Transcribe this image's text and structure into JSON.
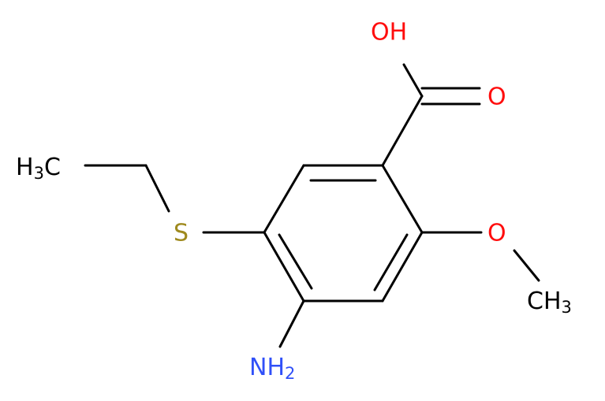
{
  "atoms": [
    {
      "text": "OH"
    },
    {
      "text": "O"
    },
    {
      "main": "H",
      "sub": "3",
      "tail": "C"
    },
    {
      "text": "S"
    },
    {
      "text": "O"
    },
    {
      "main": "CH",
      "sub": "3"
    },
    {
      "main": "NH",
      "sub": "2"
    }
  ]
}
